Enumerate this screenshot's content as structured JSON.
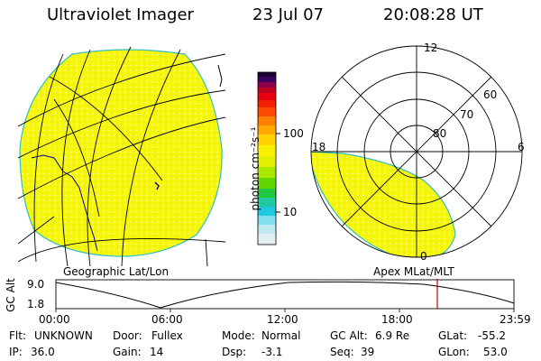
{
  "header": {
    "title": "Ultraviolet Imager",
    "date": "23 Jul 07",
    "time": "20:08:28 UT"
  },
  "colorbar": {
    "unit_label": "photon cm⁻²s⁻¹",
    "tick_high": "100",
    "tick_low": "10"
  },
  "polar_plot": {
    "mlt_top": "12",
    "mlt_left": "18",
    "mlt_right": "6",
    "mlt_bottom": "0",
    "lat_60": "60",
    "lat_70": "70",
    "lat_80": "80"
  },
  "map_labels": {
    "left": "Geographic Lat/Lon",
    "right": "Apex MLat/MLT"
  },
  "altitude_plot": {
    "ylabel": "GC Alt",
    "y_high": "9.0",
    "y_low": "1.8",
    "x_ticks": [
      "00:00",
      "06:00",
      "12:00",
      "18:00",
      "23:59"
    ],
    "marker_color": "#cc0000"
  },
  "info": {
    "filter_label": "Flt:",
    "filter_value": "UNKNOWN",
    "ip_label": "IP:",
    "ip_value": "36.0",
    "door_label": "Door:",
    "door_value": "Fullex",
    "gain_label": "Gain:",
    "gain_value": "14",
    "mode_label": "Mode:",
    "mode_value": "Normal",
    "dsp_label": "Dsp:",
    "dsp_value": "-3.1",
    "gcalt_label": "GC Alt:",
    "gcalt_value": "6.9 Re",
    "seq_label": "Seq:",
    "seq_value": "39",
    "glat_label": "GLat:",
    "glat_value": "-55.2",
    "glon_label": "GLon:",
    "glon_value": "53.0"
  }
}
